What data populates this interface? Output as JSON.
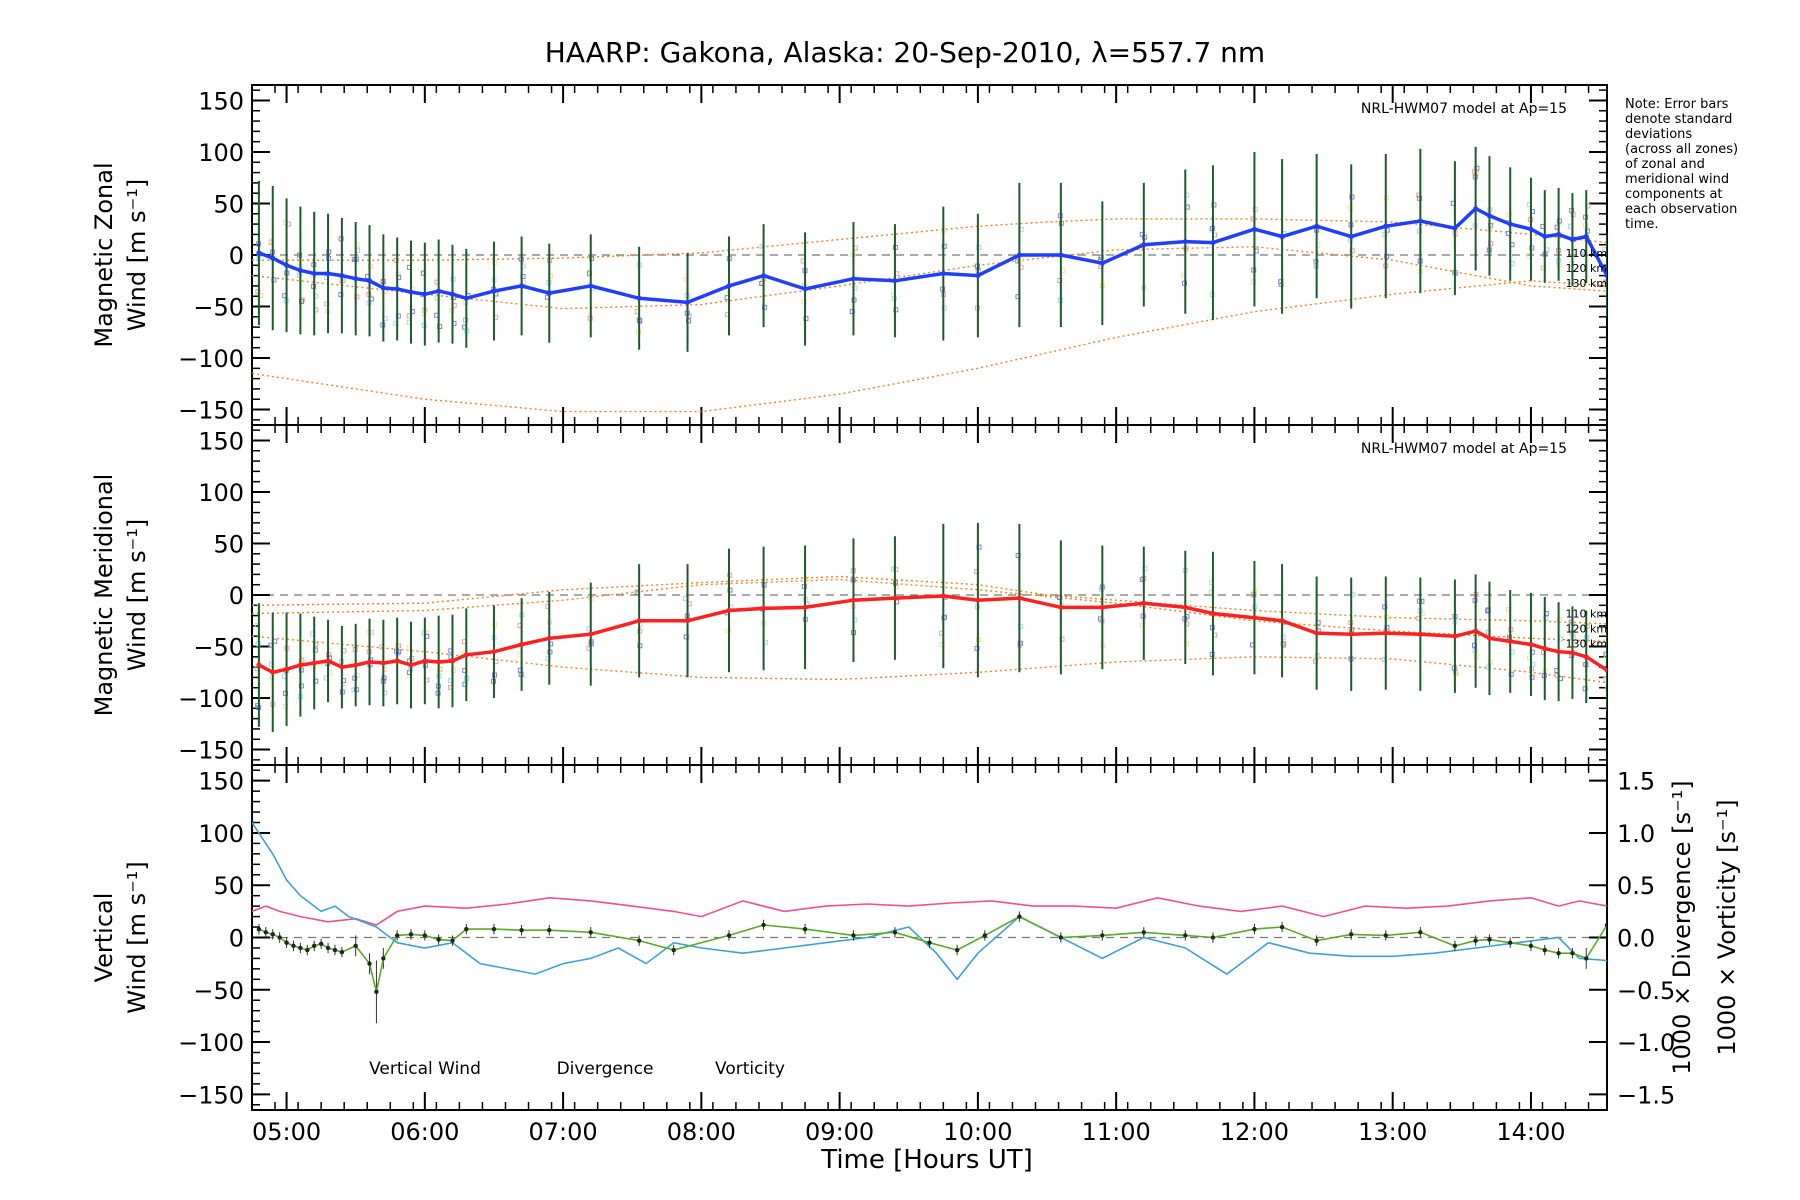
{
  "figure": {
    "title": "HAARP: Gakona,  Alaska: 20-Sep-2010, λ=557.7 nm",
    "note_lines": [
      "Note: Error bars",
      "denote standard",
      "deviations",
      "(across all zones)",
      "of zonal and",
      "meridional wind",
      "components at",
      "each observation",
      "time."
    ],
    "xlabel": "Time [Hours UT]",
    "x_ticks": [
      "05:00",
      "06:00",
      "07:00",
      "08:00",
      "09:00",
      "10:00",
      "11:00",
      "12:00",
      "13:00",
      "14:00"
    ],
    "colors": {
      "zonal": "#1f3fff",
      "meridional": "#ff2020",
      "model": "#f08020",
      "error_bar": "#1f5a2a",
      "vertical": "#5aaa2a",
      "divergence": "#3fa0d8",
      "vorticity": "#f0508a",
      "zero_line": "#777777",
      "scatter": "#8080e0"
    }
  },
  "chart_data": [
    {
      "type": "line",
      "panel": "zonal",
      "ylabel_line1": "Magnetic Zonal",
      "ylabel_line2": "Wind [m s⁻¹]",
      "model_label": "NRL-HWM07 model at Ap=15",
      "model_alt_labels": [
        "110 km",
        "120 km",
        "130 km"
      ],
      "ylim": [
        -165,
        165
      ],
      "y_ticks": [
        150,
        100,
        50,
        0,
        -50,
        -100,
        -150
      ],
      "xlim": [
        4.75,
        14.55
      ],
      "x": [
        4.8,
        4.9,
        5.0,
        5.1,
        5.2,
        5.3,
        5.4,
        5.5,
        5.6,
        5.7,
        5.8,
        5.9,
        6.0,
        6.1,
        6.2,
        6.3,
        6.5,
        6.7,
        6.9,
        7.2,
        7.55,
        7.9,
        8.2,
        8.45,
        8.75,
        9.1,
        9.4,
        9.75,
        10.0,
        10.3,
        10.6,
        10.9,
        11.2,
        11.5,
        11.7,
        12.0,
        12.2,
        12.45,
        12.7,
        12.95,
        13.2,
        13.45,
        13.6,
        13.7,
        13.85,
        14.0,
        14.1,
        14.2,
        14.3,
        14.4,
        14.55
      ],
      "series": [
        {
          "values": [
            2,
            -3,
            -10,
            -15,
            -18,
            -18,
            -20,
            -23,
            -25,
            -32,
            -33,
            -36,
            -38,
            -35,
            -38,
            -42,
            -35,
            -30,
            -37,
            -30,
            -42,
            -46,
            -30,
            -20,
            -33,
            -23,
            -25,
            -18,
            -20,
            0,
            0,
            -8,
            10,
            13,
            12,
            25,
            18,
            28,
            18,
            28,
            33,
            26,
            45,
            38,
            30,
            25,
            18,
            20,
            15,
            18,
            -20
          ],
          "error_bars": [
            70,
            70,
            65,
            62,
            60,
            58,
            56,
            55,
            54,
            52,
            50,
            50,
            50,
            50,
            48,
            48,
            48,
            48,
            48,
            50,
            50,
            48,
            48,
            50,
            55,
            55,
            55,
            65,
            60,
            70,
            70,
            60,
            60,
            70,
            75,
            75,
            75,
            70,
            70,
            70,
            70,
            65,
            60,
            58,
            55,
            50,
            45,
            45,
            45,
            45,
            40
          ]
        }
      ],
      "model": [
        {
          "name": "110 km",
          "x": [
            4.75,
            6.0,
            7.0,
            8.0,
            9.0,
            10.0,
            10.5,
            11.0,
            12.0,
            13.0,
            14.0,
            14.55
          ],
          "y": [
            -5,
            -5,
            -3,
            2,
            15,
            28,
            32,
            35,
            35,
            32,
            20,
            12
          ]
        },
        {
          "name": "120 km",
          "x": [
            4.75,
            6.0,
            7.0,
            8.0,
            9.0,
            10.0,
            11.0,
            12.0,
            13.0,
            14.0,
            14.55
          ],
          "y": [
            -20,
            -38,
            -52,
            -48,
            -30,
            -10,
            5,
            8,
            -5,
            -30,
            -35
          ]
        },
        {
          "name": "130 km",
          "x": [
            4.75,
            6.0,
            7.0,
            8.0,
            9.0,
            10.0,
            11.0,
            12.0,
            13.0,
            14.0,
            14.55
          ],
          "y": [
            -115,
            -140,
            -152,
            -152,
            -135,
            -110,
            -80,
            -55,
            -38,
            -25,
            -30
          ]
        }
      ]
    },
    {
      "type": "line",
      "panel": "meridional",
      "ylabel_line1": "Magnetic Meridional",
      "ylabel_line2": "Wind [m s⁻¹]",
      "model_label": "NRL-HWM07 model at Ap=15",
      "model_alt_labels": [
        "110 km",
        "120 km",
        "130 km"
      ],
      "ylim": [
        -165,
        165
      ],
      "y_ticks": [
        150,
        100,
        50,
        0,
        -50,
        -100,
        -150
      ],
      "xlim": [
        4.75,
        14.55
      ],
      "x": [
        4.8,
        4.9,
        5.0,
        5.1,
        5.2,
        5.3,
        5.4,
        5.5,
        5.6,
        5.7,
        5.8,
        5.9,
        6.0,
        6.1,
        6.2,
        6.3,
        6.5,
        6.7,
        6.9,
        7.2,
        7.55,
        7.9,
        8.2,
        8.45,
        8.75,
        9.1,
        9.4,
        9.75,
        10.0,
        10.3,
        10.6,
        10.9,
        11.2,
        11.5,
        11.7,
        12.0,
        12.2,
        12.45,
        12.7,
        12.95,
        13.2,
        13.45,
        13.6,
        13.7,
        13.85,
        14.0,
        14.1,
        14.2,
        14.3,
        14.4,
        14.55
      ],
      "series": [
        {
          "values": [
            -68,
            -75,
            -72,
            -68,
            -66,
            -64,
            -70,
            -68,
            -65,
            -66,
            -64,
            -68,
            -64,
            -65,
            -64,
            -58,
            -55,
            -48,
            -42,
            -38,
            -25,
            -25,
            -15,
            -13,
            -12,
            -5,
            -3,
            -1,
            -5,
            -3,
            -12,
            -12,
            -8,
            -12,
            -18,
            -22,
            -25,
            -37,
            -38,
            -37,
            -38,
            -40,
            -35,
            -42,
            -45,
            -48,
            -52,
            -55,
            -56,
            -60,
            -73
          ],
          "error_bars": [
            60,
            58,
            55,
            50,
            45,
            40,
            40,
            40,
            42,
            42,
            42,
            42,
            42,
            45,
            45,
            45,
            45,
            45,
            45,
            50,
            55,
            55,
            60,
            60,
            60,
            60,
            60,
            70,
            75,
            72,
            65,
            60,
            55,
            55,
            60,
            55,
            55,
            55,
            55,
            55,
            55,
            55,
            55,
            55,
            50,
            50,
            50,
            48,
            45,
            45,
            40
          ]
        }
      ],
      "model": [
        {
          "name": "110 km",
          "x": [
            4.75,
            6.0,
            7.0,
            8.0,
            9.0,
            10.0,
            10.5,
            11.0,
            12.0,
            13.0,
            14.0,
            14.55
          ],
          "y": [
            -10,
            -8,
            5,
            12,
            18,
            10,
            0,
            -5,
            -15,
            -22,
            -25,
            -28
          ]
        },
        {
          "name": "120 km",
          "x": [
            4.75,
            6.0,
            7.0,
            8.0,
            9.0,
            10.0,
            11.0,
            12.0,
            13.0,
            14.0,
            14.55
          ],
          "y": [
            -18,
            -15,
            -5,
            10,
            15,
            5,
            -8,
            -25,
            -35,
            -42,
            -45
          ]
        },
        {
          "name": "130 km",
          "x": [
            4.75,
            6.0,
            7.0,
            8.0,
            9.0,
            10.0,
            11.0,
            12.0,
            13.0,
            14.0,
            14.55
          ],
          "y": [
            -40,
            -55,
            -70,
            -80,
            -82,
            -75,
            -65,
            -60,
            -62,
            -75,
            -85
          ]
        }
      ]
    },
    {
      "type": "line",
      "panel": "vertical",
      "ylabel_line1": "Vertical",
      "ylabel_line2": "Wind [m s⁻¹]",
      "y2label_div": "1000 × Divergence [s⁻¹]",
      "y2label_vor": "1000 × Vorticity [s⁻¹]",
      "ylim": [
        -165,
        165
      ],
      "y_ticks": [
        150,
        100,
        50,
        0,
        -50,
        -100,
        -150
      ],
      "y2lim": [
        -1.65,
        1.65
      ],
      "y2_ticks": [
        1.5,
        1.0,
        0.5,
        0.0,
        -0.5,
        -1.0,
        -1.5
      ],
      "y2_tick_labels": [
        "1.5",
        "1.0",
        "0.5",
        "0.0",
        "−0.5",
        "−1.0",
        "−1.5"
      ],
      "xlim": [
        4.75,
        14.55
      ],
      "legend": [
        "Vertical Wind",
        "Divergence",
        "Vorticity"
      ],
      "series": [
        {
          "name": "Vertical Wind",
          "axis": "left",
          "x": [
            4.8,
            4.85,
            4.9,
            4.95,
            5.0,
            5.05,
            5.1,
            5.15,
            5.2,
            5.25,
            5.3,
            5.35,
            5.4,
            5.5,
            5.6,
            5.65,
            5.7,
            5.8,
            5.9,
            6.0,
            6.1,
            6.2,
            6.3,
            6.5,
            6.7,
            6.9,
            7.2,
            7.55,
            7.8,
            8.2,
            8.45,
            8.75,
            9.1,
            9.4,
            9.65,
            9.85,
            10.05,
            10.3,
            10.6,
            10.9,
            11.2,
            11.5,
            11.7,
            12.0,
            12.2,
            12.45,
            12.7,
            12.95,
            13.2,
            13.45,
            13.6,
            13.7,
            13.85,
            14.0,
            14.1,
            14.2,
            14.3,
            14.4,
            14.55
          ],
          "values": [
            8,
            5,
            3,
            0,
            -5,
            -8,
            -10,
            -12,
            -8,
            -6,
            -10,
            -12,
            -14,
            -8,
            -25,
            -52,
            -20,
            2,
            3,
            2,
            -2,
            -3,
            8,
            8,
            7,
            7,
            5,
            -3,
            -12,
            2,
            12,
            8,
            2,
            5,
            -5,
            -12,
            2,
            20,
            0,
            2,
            5,
            2,
            0,
            8,
            10,
            -3,
            3,
            2,
            5,
            -8,
            -3,
            -2,
            -5,
            -8,
            -12,
            -15,
            -15,
            -20,
            12
          ],
          "error_bars": [
            5,
            5,
            5,
            5,
            5,
            5,
            5,
            5,
            5,
            5,
            5,
            5,
            5,
            10,
            10,
            30,
            10,
            5,
            5,
            5,
            5,
            5,
            5,
            5,
            5,
            5,
            5,
            5,
            5,
            5,
            5,
            5,
            5,
            5,
            5,
            5,
            5,
            5,
            5,
            5,
            5,
            5,
            5,
            5,
            5,
            5,
            5,
            5,
            5,
            5,
            5,
            5,
            5,
            5,
            5,
            5,
            5,
            10,
            5
          ]
        },
        {
          "name": "Divergence",
          "axis": "right",
          "x": [
            4.75,
            4.9,
            5.0,
            5.1,
            5.25,
            5.35,
            5.45,
            5.55,
            5.65,
            5.8,
            6.0,
            6.2,
            6.4,
            6.6,
            6.8,
            7.0,
            7.2,
            7.4,
            7.6,
            7.8,
            8.0,
            8.3,
            8.6,
            8.9,
            9.2,
            9.5,
            9.7,
            9.85,
            10.0,
            10.3,
            10.6,
            10.9,
            11.2,
            11.5,
            11.8,
            12.1,
            12.4,
            12.7,
            13.0,
            13.3,
            13.6,
            13.9,
            14.2,
            14.35,
            14.55
          ],
          "values": [
            1.1,
            0.8,
            0.55,
            0.4,
            0.25,
            0.3,
            0.2,
            0.15,
            0.1,
            -0.05,
            -0.1,
            -0.05,
            -0.25,
            -0.3,
            -0.35,
            -0.25,
            -0.2,
            -0.1,
            -0.25,
            -0.05,
            -0.1,
            -0.15,
            -0.1,
            -0.05,
            0.0,
            0.1,
            -0.15,
            -0.4,
            -0.15,
            0.2,
            0.0,
            -0.2,
            0.0,
            -0.1,
            -0.35,
            -0.05,
            -0.15,
            -0.18,
            -0.18,
            -0.15,
            -0.1,
            -0.05,
            0.0,
            -0.2,
            -0.22
          ]
        },
        {
          "name": "Vorticity",
          "axis": "right",
          "x": [
            4.75,
            4.85,
            4.95,
            5.1,
            5.3,
            5.5,
            5.65,
            5.8,
            6.0,
            6.3,
            6.6,
            6.9,
            7.2,
            7.5,
            7.8,
            8.0,
            8.3,
            8.6,
            8.9,
            9.2,
            9.5,
            9.8,
            10.1,
            10.4,
            10.7,
            11.0,
            11.3,
            11.6,
            11.9,
            12.2,
            12.5,
            12.8,
            13.1,
            13.4,
            13.7,
            14.0,
            14.2,
            14.35,
            14.55
          ],
          "values": [
            0.25,
            0.3,
            0.25,
            0.2,
            0.15,
            0.18,
            0.12,
            0.25,
            0.3,
            0.28,
            0.32,
            0.38,
            0.35,
            0.3,
            0.25,
            0.2,
            0.35,
            0.25,
            0.3,
            0.32,
            0.3,
            0.33,
            0.35,
            0.3,
            0.3,
            0.28,
            0.38,
            0.3,
            0.25,
            0.3,
            0.2,
            0.3,
            0.28,
            0.3,
            0.35,
            0.38,
            0.3,
            0.35,
            0.3
          ]
        }
      ]
    }
  ]
}
